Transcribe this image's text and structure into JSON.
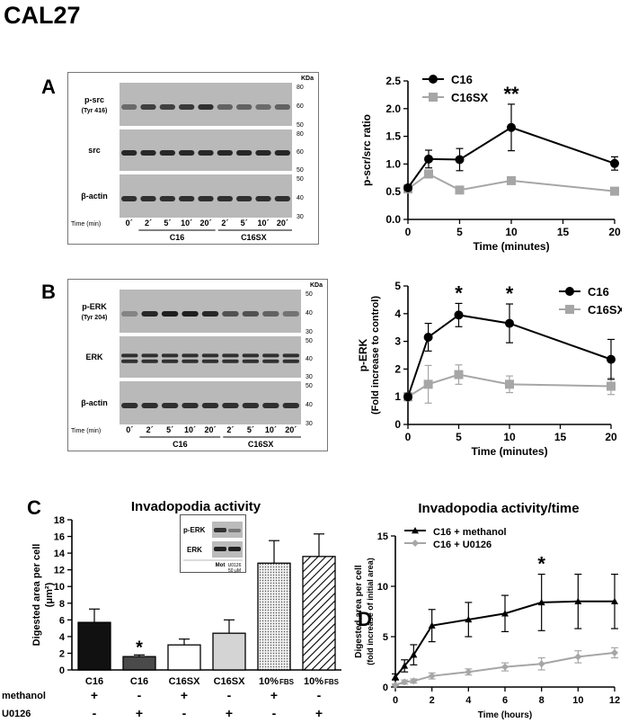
{
  "figure_title": "CAL27",
  "panels": {
    "A": {
      "letter": "A",
      "blot": {
        "kda_unit": "KDa",
        "rows": [
          {
            "label": "p-src",
            "sublabel": "(Tyr 416)",
            "ticks": [
              "80",
              "60",
              "50"
            ]
          },
          {
            "label": "src",
            "sublabel": "",
            "ticks": [
              "80",
              "60",
              "50"
            ]
          },
          {
            "label": "β-actin",
            "sublabel": "",
            "ticks": [
              "50",
              "40",
              "30"
            ]
          }
        ],
        "time_label": "Time (min)",
        "lanes": [
          "0´",
          "2´",
          "5´",
          "10´",
          "20´",
          "2´",
          "5´",
          "10´",
          "20´"
        ],
        "groups": [
          "C16",
          "C16SX"
        ],
        "band_intensity": {
          "p-src": [
            0.55,
            0.8,
            0.8,
            0.85,
            0.9,
            0.6,
            0.6,
            0.55,
            0.6
          ],
          "src": [
            0.95,
            0.95,
            0.95,
            0.95,
            0.95,
            0.95,
            0.95,
            0.95,
            0.95
          ],
          "β-actin": [
            0.9,
            0.9,
            0.9,
            0.9,
            0.9,
            0.9,
            0.9,
            0.9,
            0.9
          ]
        }
      }
    },
    "B": {
      "letter": "B",
      "blot": {
        "kda_unit": "KDa",
        "rows": [
          {
            "label": "p-ERK",
            "sublabel": "(Tyr 204)",
            "ticks": [
              "50",
              "40",
              "30"
            ]
          },
          {
            "label": "ERK",
            "sublabel": "",
            "ticks": [
              "50",
              "40",
              "30"
            ]
          },
          {
            "label": "β-actin",
            "sublabel": "",
            "ticks": [
              "50",
              "40",
              "30"
            ]
          }
        ],
        "time_label": "Time (min)",
        "lanes": [
          "0´",
          "2´",
          "5´",
          "10´",
          "20´",
          "2´",
          "5´",
          "10´",
          "20´"
        ],
        "groups": [
          "C16",
          "C16SX"
        ],
        "band_intensity": {
          "p-ERK": [
            0.4,
            0.95,
            1.0,
            1.0,
            0.95,
            0.7,
            0.7,
            0.6,
            0.5
          ],
          "ERK": [
            0.9,
            0.9,
            0.9,
            0.9,
            0.9,
            0.9,
            0.9,
            0.9,
            0.9
          ],
          "β-actin": [
            0.9,
            0.9,
            0.9,
            0.9,
            0.9,
            0.9,
            0.9,
            0.9,
            0.9
          ]
        }
      }
    },
    "C": {
      "letter": "C",
      "inset": {
        "rows": [
          "p-ERK",
          "ERK"
        ],
        "lanes": [
          "Mot",
          "U0126"
        ],
        "dose": "50 μM"
      },
      "condition_rows": [
        {
          "label": "methanol",
          "values": [
            "+",
            "-",
            "+",
            "-",
            "+",
            "-"
          ]
        },
        {
          "label": "U0126",
          "values": [
            "-",
            "+",
            "-",
            "+",
            "-",
            "+"
          ]
        }
      ]
    },
    "D": {
      "letter": "D"
    }
  },
  "chart_data": [
    {
      "id": "A",
      "type": "line",
      "title": "",
      "xlabel": "Time (minutes)",
      "ylabel": "p-scr/src ratio",
      "xlim": [
        0,
        20
      ],
      "ylim": [
        0,
        2.5
      ],
      "xticks": [
        "0",
        "5",
        "10",
        "15",
        "20"
      ],
      "yticks": [
        "0.0",
        "0.5",
        "1.0",
        "1.5",
        "2.0",
        "2.5"
      ],
      "x": [
        0,
        2,
        5,
        10,
        20
      ],
      "series": [
        {
          "name": "C16",
          "marker": "circle",
          "color": "#000000",
          "values": [
            0.57,
            1.09,
            1.08,
            1.66,
            1.01
          ],
          "errors": [
            0.05,
            0.16,
            0.2,
            0.42,
            0.12
          ]
        },
        {
          "name": "C16SX",
          "marker": "square",
          "color": "#a6a6a6",
          "values": [
            0.55,
            0.82,
            0.53,
            0.7,
            0.51
          ],
          "errors": [
            0.04,
            0.06,
            0.03,
            0.03,
            0.06
          ]
        }
      ],
      "annotations": [
        {
          "text": "**",
          "x": 10
        }
      ]
    },
    {
      "id": "B",
      "type": "line",
      "title": "",
      "xlabel": "Time (minutes)",
      "ylabel": "p-ERK",
      "ylabel2": "(Fold increase to control)",
      "xlim": [
        0,
        20
      ],
      "ylim": [
        0,
        5
      ],
      "xticks": [
        "0",
        "5",
        "10",
        "15",
        "20"
      ],
      "yticks": [
        "0",
        "1",
        "2",
        "3",
        "4",
        "5"
      ],
      "x": [
        0,
        2,
        5,
        10,
        20
      ],
      "series": [
        {
          "name": "C16",
          "marker": "circle",
          "color": "#000000",
          "values": [
            1.0,
            3.15,
            3.95,
            3.65,
            2.35
          ],
          "errors": [
            0.1,
            0.5,
            0.42,
            0.7,
            0.72
          ]
        },
        {
          "name": "C16SX",
          "marker": "square",
          "color": "#a6a6a6",
          "values": [
            1.0,
            1.45,
            1.8,
            1.45,
            1.38
          ],
          "errors": [
            0.15,
            0.68,
            0.35,
            0.3,
            0.3
          ]
        }
      ],
      "annotations": [
        {
          "text": "*",
          "x": 5
        },
        {
          "text": "*",
          "x": 10
        }
      ]
    },
    {
      "id": "C",
      "type": "bar",
      "title": "Invadopodia activity",
      "xlabel": "",
      "ylabel": "Digested area per cell",
      "ylabel2": "(μm²)",
      "ylim": [
        0,
        18
      ],
      "yticks": [
        "0",
        "2",
        "4",
        "6",
        "8",
        "10",
        "12",
        "14",
        "16",
        "18"
      ],
      "categories": [
        "C16",
        "C16",
        "C16SX",
        "C16SX",
        "10%",
        "10%"
      ],
      "category_suffix": [
        "",
        "",
        "",
        "",
        "FBS",
        "FBS"
      ],
      "values": [
        5.7,
        1.6,
        3.0,
        4.4,
        12.8,
        13.6
      ],
      "errors": [
        1.6,
        0.2,
        0.7,
        1.6,
        2.7,
        2.7
      ],
      "fills": [
        "#111111",
        "#4a4a4a",
        "#ffffff",
        "#d4d4d4",
        "dots",
        "hatch"
      ],
      "annotations": [
        {
          "text": "*",
          "index": 1
        }
      ]
    },
    {
      "id": "D",
      "type": "line",
      "title": "Invadopodia activity/time",
      "xlabel": "Time (hours)",
      "ylabel": "Digested area per cell",
      "ylabel2": "(fold increase of initial area)",
      "xlim": [
        0,
        12
      ],
      "ylim": [
        0,
        15
      ],
      "xticks": [
        "0",
        "2",
        "4",
        "6",
        "8",
        "10",
        "12"
      ],
      "yticks": [
        "0",
        "5",
        "10",
        "15"
      ],
      "x": [
        0,
        0.5,
        1,
        2,
        4,
        6,
        8,
        10,
        12
      ],
      "series": [
        {
          "name": "C16 + methanol",
          "marker": "triangle",
          "color": "#000000",
          "values": [
            1.0,
            2.1,
            3.2,
            6.1,
            6.7,
            7.3,
            8.4,
            8.5,
            8.5
          ],
          "errors": [
            0.3,
            0.6,
            1.0,
            1.6,
            1.7,
            1.8,
            2.8,
            2.7,
            2.7
          ]
        },
        {
          "name": "C16 + U0126",
          "marker": "diamond",
          "color": "#a6a6a6",
          "values": [
            0.2,
            0.5,
            0.6,
            1.1,
            1.5,
            2.0,
            2.3,
            3.0,
            3.4
          ],
          "errors": [
            0.1,
            0.2,
            0.2,
            0.3,
            0.3,
            0.4,
            0.6,
            0.6,
            0.5
          ]
        }
      ],
      "annotations": [
        {
          "text": "*",
          "x": 8
        }
      ]
    }
  ]
}
